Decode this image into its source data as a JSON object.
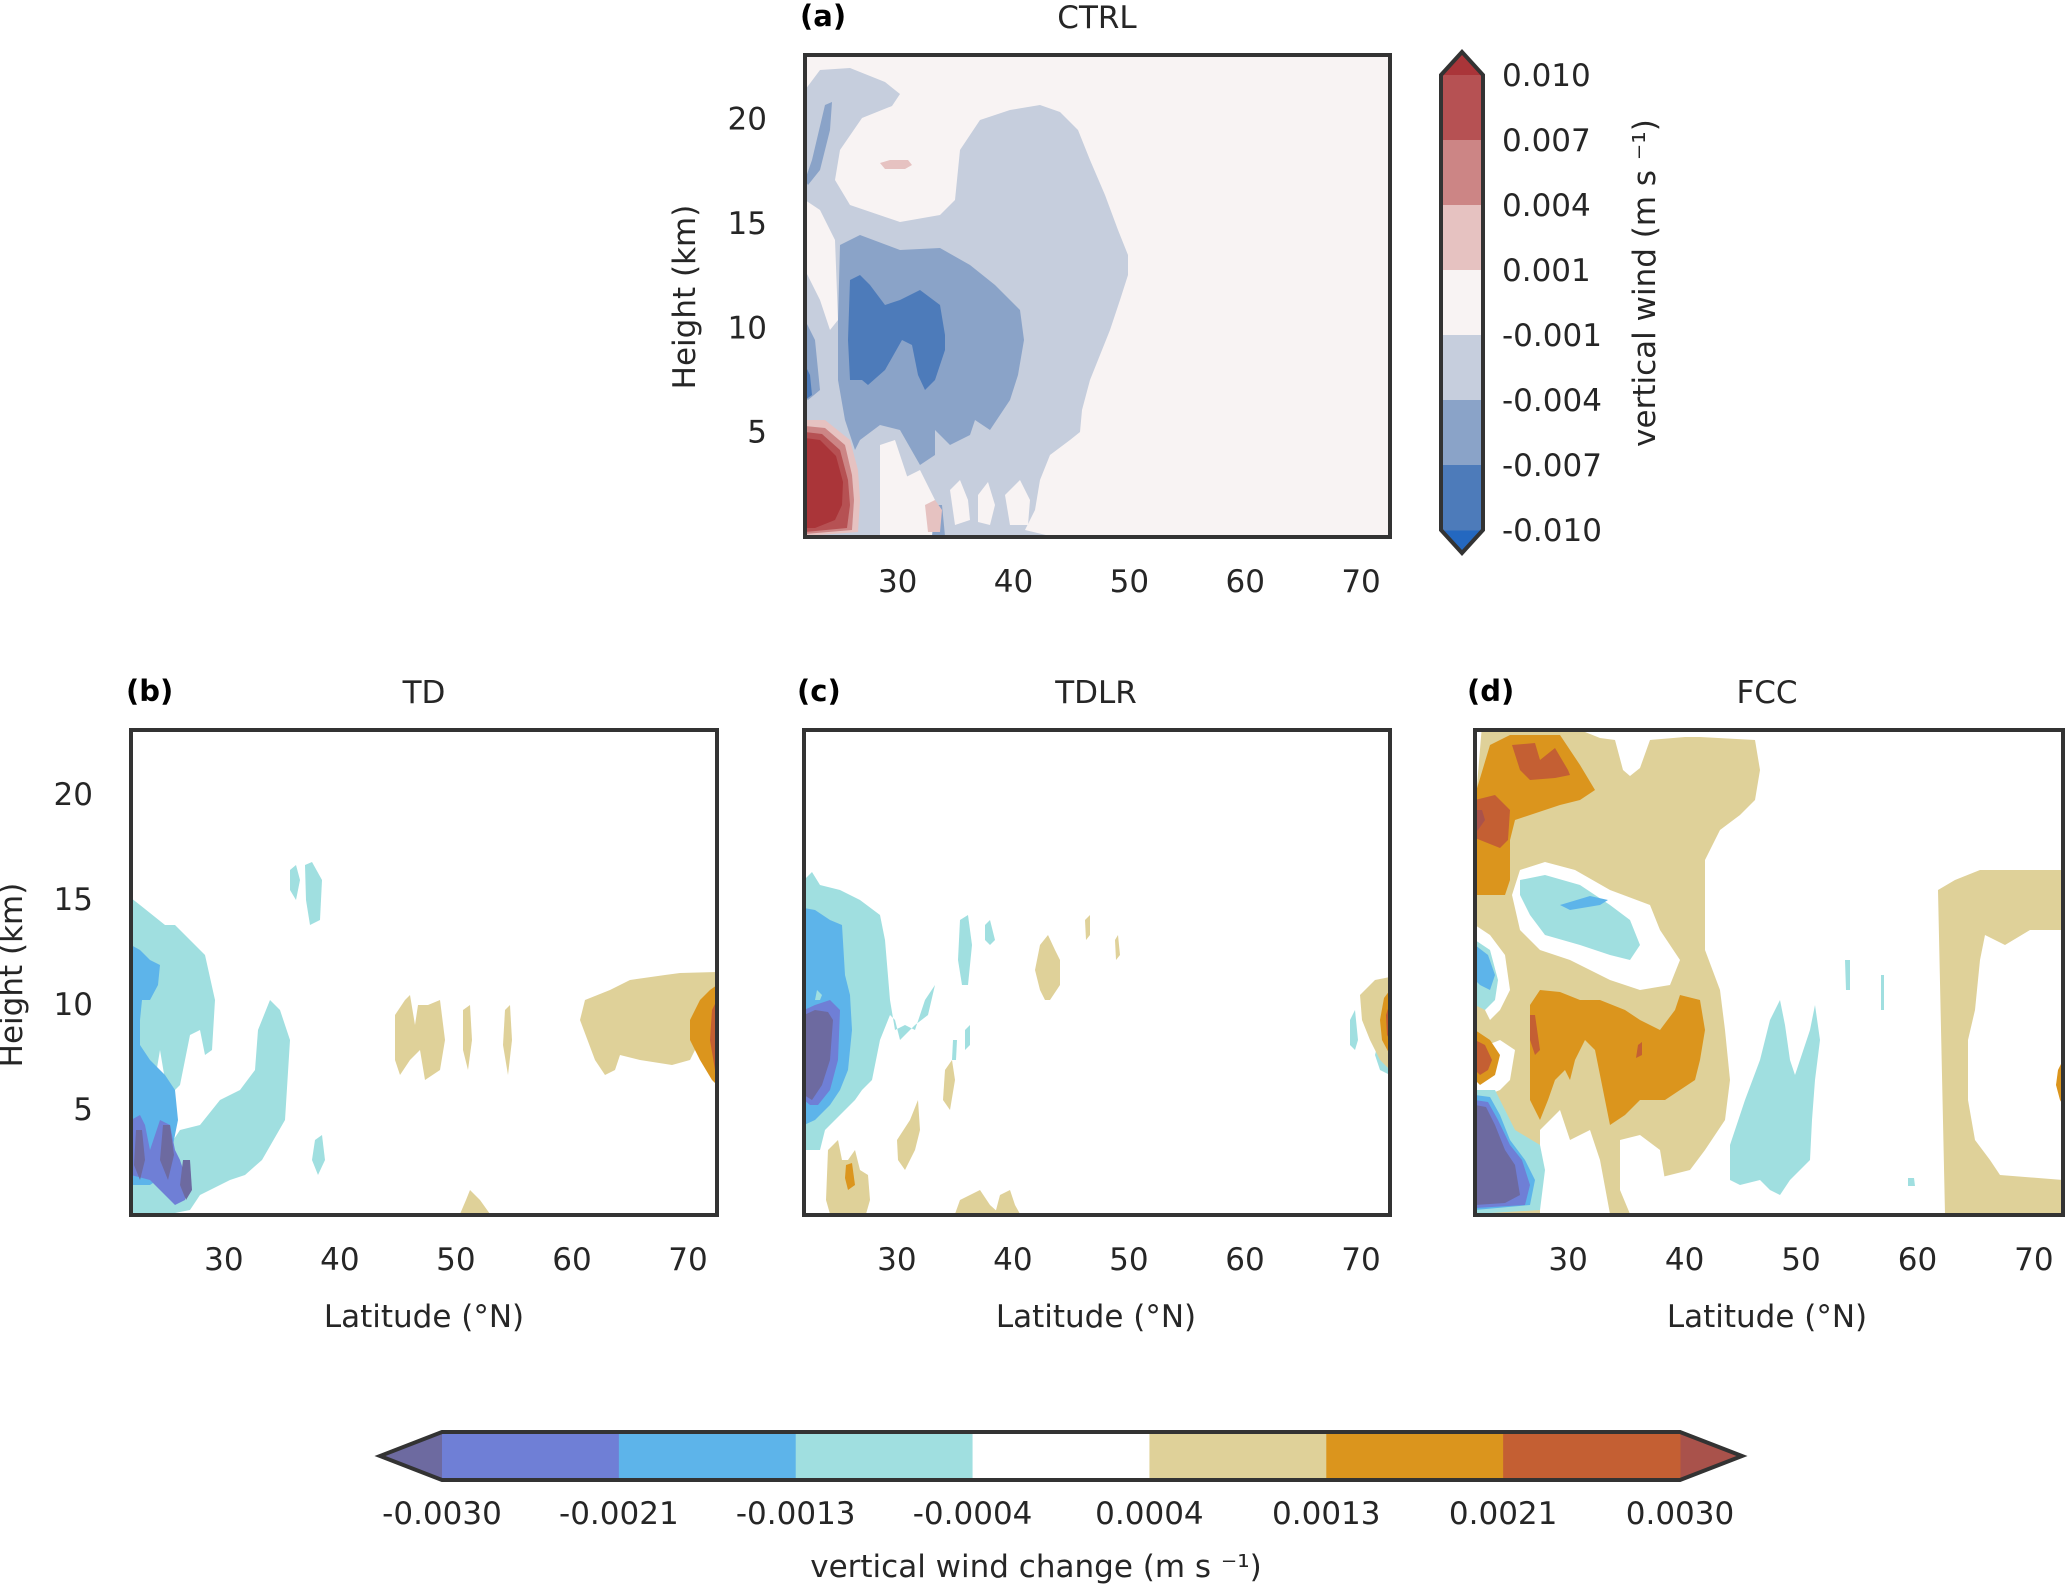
{
  "chart_data": [
    {
      "type": "heatmap",
      "panel_label": "(a)",
      "title": "CTRL",
      "xlabel": "",
      "ylabel": "Height (km)",
      "xlim": [
        22,
        72.5
      ],
      "ylim": [
        0,
        23
      ],
      "xticks": [
        "30",
        "40",
        "50",
        "60",
        "70"
      ],
      "yticks": [
        "5",
        "10",
        "15",
        "20"
      ],
      "colorbar": "ctrl",
      "description": "Strong positive (red, >0.010) near 22-27N below 5 km; broad negative (blue) region 24-56N from ~0-20 km with core <-0.007 around 27-38N, 8-12 km; near-zero elsewhere"
    },
    {
      "type": "heatmap",
      "panel_label": "(b)",
      "title": "TD",
      "xlabel": "Latitude (°N)",
      "ylabel": "Height (km)",
      "xlim": [
        22,
        72.5
      ],
      "ylim": [
        0,
        23
      ],
      "xticks": [
        "30",
        "40",
        "50",
        "60",
        "70"
      ],
      "yticks": [
        "5",
        "10",
        "15",
        "20"
      ],
      "colorbar": "change",
      "description": "Negative change (cyan/blue/purple) at 22-34N below 15 km, strongest <-0.003 at 22-28N below 4 km; weak positive patches 43-60N at 5-10 km; positive maximum near 70-72N at 5-10 km"
    },
    {
      "type": "heatmap",
      "panel_label": "(c)",
      "title": "TDLR",
      "xlabel": "Latitude (°N)",
      "ylabel": "",
      "xlim": [
        22,
        72.5
      ],
      "ylim": [
        0,
        23
      ],
      "xticks": [
        "30",
        "40",
        "50",
        "60",
        "70"
      ],
      "yticks": [],
      "colorbar": "change",
      "description": "Negative change at 22-34N below 15 km, strongest <-0.003 at 22-26N below 6 km; weak positive patches 25-47N lower levels; positive maximum near 70-72N at 5-10 km"
    },
    {
      "type": "heatmap",
      "panel_label": "(d)",
      "title": "FCC",
      "xlabel": "Latitude (°N)",
      "ylabel": "",
      "xlim": [
        22,
        72.5
      ],
      "ylim": [
        0,
        23
      ],
      "xticks": [
        "30",
        "40",
        "50",
        "60",
        "70"
      ],
      "yticks": [],
      "colorbar": "change",
      "description": "Widespread positive change 22-50N up to 22 km with maxima >0.0021 near 23-30N at 17-21 km and 25-40N at 5-11 km; negative pocket 27-37N at 14-17 km; strong negative <-0.003 at 22-27N below 5 km; negative band 49-56N below 9 km; positive near 68-72N"
    }
  ],
  "colorbars": {
    "ctrl": {
      "label": "vertical wind (m s ⁻¹)",
      "ticks": [
        "0.010",
        "0.007",
        "0.004",
        "0.001",
        "-0.001",
        "-0.004",
        "-0.007",
        "-0.010"
      ],
      "levels": [
        0.01,
        0.007,
        0.004,
        0.001,
        -0.001,
        -0.004,
        -0.007,
        -0.01
      ],
      "colors_top_to_bottom": [
        "#b65153",
        "#cc8585",
        "#e6c2c1",
        "#f8f3f3",
        "#c6cedd",
        "#8aa3c8",
        "#4d7bba"
      ],
      "extend_colors": {
        "max": "#aa3539",
        "min": "#2468c0"
      }
    },
    "change": {
      "label": "vertical wind change (m s ⁻¹)",
      "ticks": [
        "-0.0030",
        "-0.0021",
        "-0.0013",
        "-0.0004",
        "0.0004",
        "0.0013",
        "0.0021",
        "0.0030"
      ],
      "levels": [
        -0.003,
        -0.0021,
        -0.0013,
        -0.0004,
        0.0004,
        0.0013,
        0.0021,
        0.003
      ],
      "colors_left_to_right": [
        "#6f7fd6",
        "#5db4ea",
        "#a0dfe0",
        "#ffffff",
        "#dfd199",
        "#db951d",
        "#c45f33"
      ],
      "extend_colors": {
        "min": "#6d6aa0",
        "max": "#a9524b"
      }
    }
  }
}
